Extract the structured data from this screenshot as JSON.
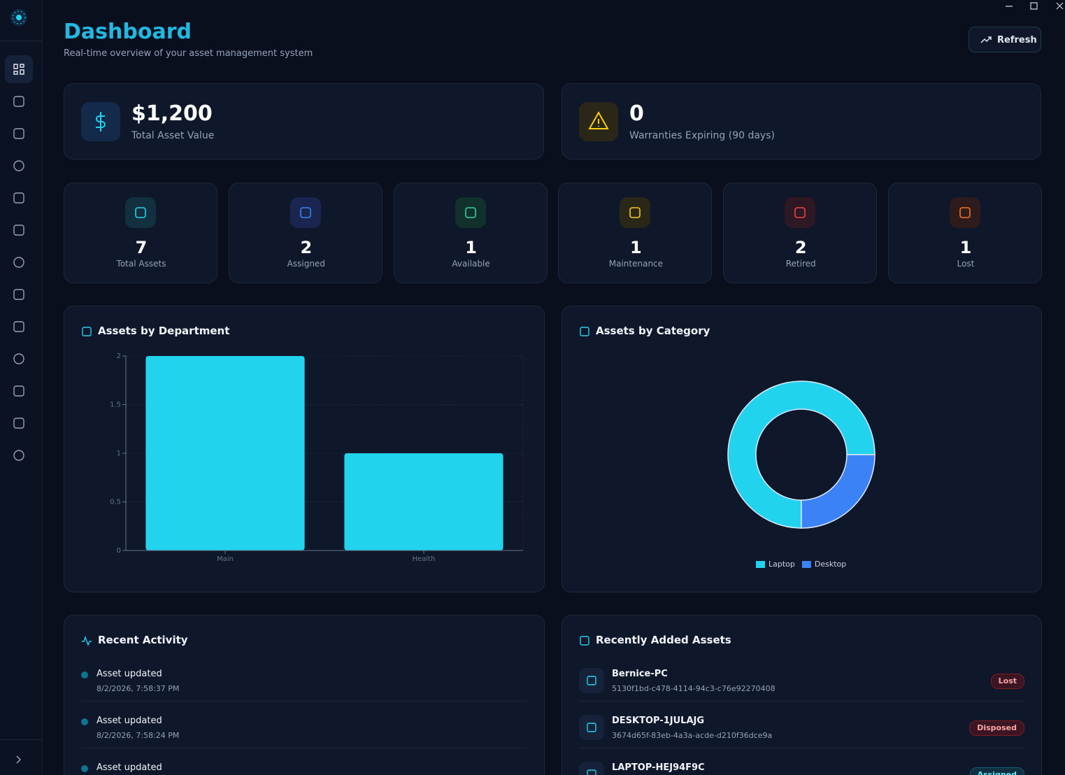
{
  "app": {
    "title": "Dashboard",
    "subtitle": "Real-time overview of your asset management system",
    "refresh": "Refresh"
  },
  "summary": [
    {
      "value": "$1,200",
      "label": "Total Asset Value"
    },
    {
      "value": "0",
      "label": "Warranties Expiring (90 days)"
    }
  ],
  "status_cards": [
    {
      "count": 7,
      "label": "Total Assets"
    },
    {
      "count": 2,
      "label": "Assigned"
    },
    {
      "count": 1,
      "label": "Available"
    },
    {
      "count": 1,
      "label": "Maintenance"
    },
    {
      "count": 2,
      "label": "Retired"
    },
    {
      "count": 1,
      "label": "Lost"
    }
  ],
  "department_chart": {
    "type": "bar",
    "title": "Assets by Department",
    "categories": [
      "Main",
      "Health"
    ],
    "values": [
      2,
      1
    ],
    "color": "#22d3ee",
    "ylim": [
      0,
      2
    ],
    "yticks": [
      0,
      0.5,
      1,
      1.5,
      2
    ],
    "grid": true
  },
  "category_chart": {
    "type": "pie",
    "title": "Assets by Category",
    "categories": [
      "Laptop",
      "Desktop"
    ],
    "values": [
      75,
      25
    ],
    "colors": [
      "#22d3ee",
      "#3b82f6"
    ]
  },
  "recent_activity": {
    "title": "Recent Activity",
    "items": [
      {
        "action": "Asset updated",
        "time": "8/2/2026, 7:58:37 PM"
      },
      {
        "action": "Asset updated",
        "time": "8/2/2026, 7:58:24 PM"
      },
      {
        "action": "Asset updated"
      }
    ]
  },
  "recent_assets": {
    "title": "Recently Added Assets",
    "items": [
      {
        "name": "Bernice-PC",
        "id": "5130f1bd-c478-4114-94c3-c76e92270408",
        "status": "Lost"
      },
      {
        "name": "DESKTOP-1JULAJG",
        "id": "3674d65f-83eb-4a3a-acde-d210f36dce9a",
        "status": "Disposed"
      },
      {
        "name": "LAPTOP-HEJ94F9C",
        "status": "Assigned"
      }
    ]
  }
}
